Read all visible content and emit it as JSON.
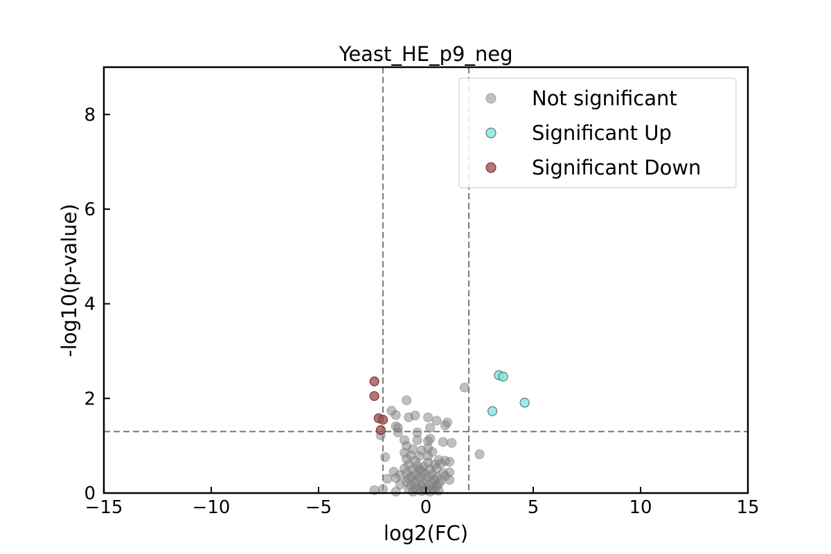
{
  "chart_data": {
    "type": "scatter",
    "title": "Yeast_HE_p9_neg",
    "xlabel": "log2(FC)",
    "ylabel": "-log10(p-value)",
    "xlim": [
      -15,
      15
    ],
    "ylim": [
      0,
      9
    ],
    "xticks": [
      -15,
      -10,
      -5,
      0,
      5,
      10,
      15
    ],
    "xtick_labels": [
      "−15",
      "−10",
      "−5",
      "0",
      "5",
      "10",
      "15"
    ],
    "yticks": [
      0,
      2,
      4,
      6,
      8
    ],
    "ytick_labels": [
      "0",
      "2",
      "4",
      "6",
      "8"
    ],
    "thresholds": {
      "fc": [
        -2,
        2
      ],
      "p": 1.3
    },
    "grid": false,
    "legend_position": "top-right",
    "series": [
      {
        "name": "Not significant",
        "color": "#808080",
        "edge": "#808080",
        "points": [
          [
            1.8,
            2.23
          ],
          [
            2.5,
            0.82
          ],
          [
            -0.9,
            1.96
          ],
          [
            -1.6,
            1.74
          ],
          [
            -1.4,
            1.65
          ],
          [
            -0.8,
            1.6
          ],
          [
            -0.5,
            1.64
          ],
          [
            0.1,
            1.6
          ],
          [
            0.5,
            1.53
          ],
          [
            1.0,
            1.49
          ],
          [
            -1.4,
            1.41
          ],
          [
            -1.3,
            1.38
          ],
          [
            0.2,
            1.38
          ],
          [
            0.9,
            1.43
          ],
          [
            -1.3,
            1.28
          ],
          [
            -0.4,
            1.28
          ],
          [
            0.2,
            1.15
          ],
          [
            0.8,
            1.08
          ],
          [
            1.2,
            1.06
          ],
          [
            -2.1,
            1.22
          ],
          [
            -1.0,
            1.12
          ],
          [
            -0.4,
            1.12
          ],
          [
            0.1,
            1.1
          ],
          [
            -0.9,
            1.0
          ],
          [
            -0.6,
            0.93
          ],
          [
            -0.2,
            0.9
          ],
          [
            0.1,
            0.95
          ],
          [
            0.3,
            0.87
          ],
          [
            -1.0,
            0.85
          ],
          [
            -0.7,
            0.8
          ],
          [
            -0.3,
            0.78
          ],
          [
            0.1,
            0.78
          ],
          [
            -1.9,
            0.76
          ],
          [
            -0.9,
            0.72
          ],
          [
            -0.5,
            0.68
          ],
          [
            0.1,
            0.65
          ],
          [
            0.6,
            0.7
          ],
          [
            0.9,
            0.68
          ],
          [
            1.1,
            0.66
          ],
          [
            -0.8,
            0.6
          ],
          [
            -0.4,
            0.58
          ],
          [
            -0.1,
            0.56
          ],
          [
            0.4,
            0.6
          ],
          [
            0.7,
            0.62
          ],
          [
            -1.0,
            0.52
          ],
          [
            -0.6,
            0.5
          ],
          [
            -0.2,
            0.48
          ],
          [
            0.2,
            0.5
          ],
          [
            0.5,
            0.52
          ],
          [
            -1.5,
            0.45
          ],
          [
            -0.9,
            0.42
          ],
          [
            -0.5,
            0.4
          ],
          [
            -0.1,
            0.42
          ],
          [
            0.3,
            0.4
          ],
          [
            0.8,
            0.42
          ],
          [
            1.1,
            0.44
          ],
          [
            -1.2,
            0.38
          ],
          [
            -0.7,
            0.35
          ],
          [
            -0.3,
            0.33
          ],
          [
            0.1,
            0.35
          ],
          [
            0.5,
            0.33
          ],
          [
            0.9,
            0.36
          ],
          [
            -1.8,
            0.3
          ],
          [
            -1.4,
            0.32
          ],
          [
            -0.8,
            0.3
          ],
          [
            -0.4,
            0.28
          ],
          [
            0.0,
            0.3
          ],
          [
            0.4,
            0.28
          ],
          [
            0.7,
            0.26
          ],
          [
            1.1,
            0.28
          ],
          [
            -0.9,
            0.24
          ],
          [
            -0.5,
            0.22
          ],
          [
            -0.1,
            0.2
          ],
          [
            0.3,
            0.22
          ],
          [
            0.6,
            0.2
          ],
          [
            -1.2,
            0.18
          ],
          [
            -0.7,
            0.16
          ],
          [
            -0.2,
            0.15
          ],
          [
            0.2,
            0.16
          ],
          [
            0.5,
            0.14
          ],
          [
            -0.5,
            0.12
          ],
          [
            -0.1,
            0.1
          ],
          [
            0.3,
            0.1
          ],
          [
            -0.8,
            0.08
          ],
          [
            -0.4,
            0.07
          ],
          [
            0.0,
            0.06
          ],
          [
            0.4,
            0.07
          ],
          [
            -2.4,
            0.06
          ],
          [
            -2.0,
            0.08
          ],
          [
            -1.4,
            0.03
          ],
          [
            -0.6,
            0.03
          ],
          [
            -0.2,
            0.04
          ],
          [
            0.2,
            0.03
          ],
          [
            0.6,
            0.05
          ],
          [
            -0.3,
            0.5
          ]
        ]
      },
      {
        "name": "Significant Up",
        "color": "#7fe8dc",
        "edge": "#4a6e6a",
        "points": [
          [
            3.4,
            2.49
          ],
          [
            3.6,
            2.46
          ],
          [
            4.6,
            1.91
          ],
          [
            3.1,
            1.73
          ]
        ]
      },
      {
        "name": "Significant Down",
        "color": "#a05252",
        "edge": "#6b2d2d",
        "points": [
          [
            -2.4,
            2.36
          ],
          [
            -2.4,
            2.05
          ],
          [
            -2.2,
            1.58
          ],
          [
            -2.0,
            1.55
          ],
          [
            -2.1,
            1.33
          ]
        ]
      }
    ]
  }
}
